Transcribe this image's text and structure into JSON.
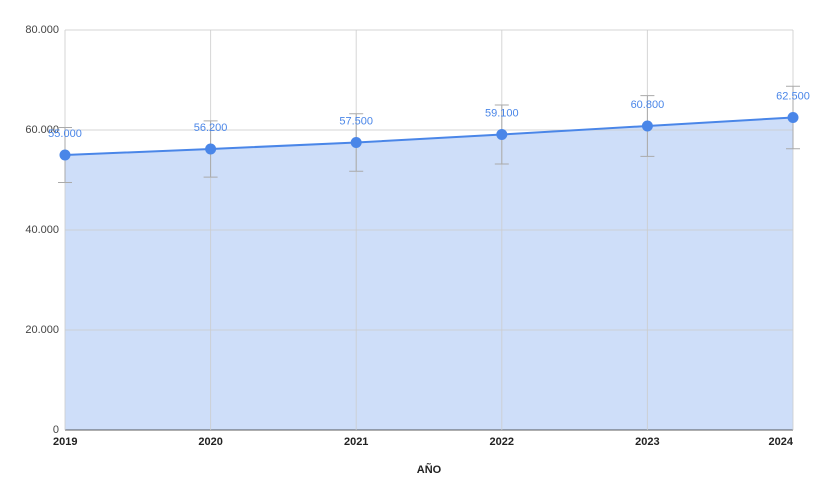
{
  "chart_data": {
    "type": "area",
    "x_label": "AÑO",
    "x": [
      2019,
      2020,
      2021,
      2022,
      2023,
      2024
    ],
    "xlim": [
      2019,
      2024
    ],
    "xticks": [
      2019,
      2020,
      2021,
      2022,
      2023,
      2024
    ],
    "ylim": [
      0,
      80000
    ],
    "yticks": [
      0,
      {
        "value": 20000,
        "label": "20.000"
      },
      {
        "value": 40000,
        "label": "40.000"
      },
      {
        "value": 60000,
        "label": "60.000"
      },
      {
        "value": 80000,
        "label": "80.000"
      }
    ],
    "grid": true,
    "series": [
      {
        "color": "#4a86e8",
        "fill": "#c9daf8",
        "values": [
          55000,
          56200,
          57500,
          59100,
          60800,
          62500
        ],
        "value_labels": [
          "55.000",
          "56.200",
          "57.500",
          "59.100",
          "60.800",
          "62.500"
        ],
        "errors": [
          5500,
          5620,
          5750,
          5910,
          6080,
          6250
        ]
      }
    ]
  }
}
